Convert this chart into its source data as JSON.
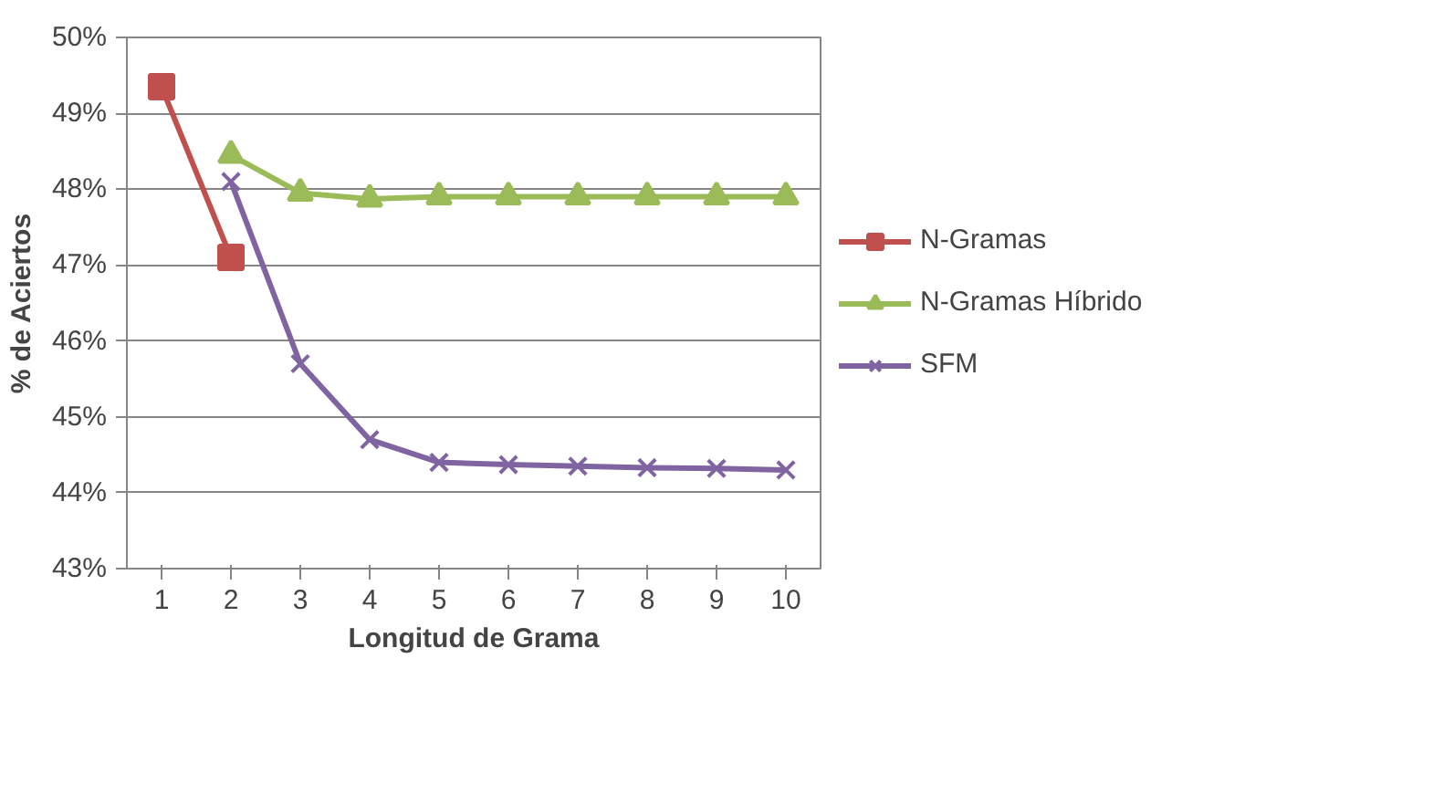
{
  "chart_data": {
    "type": "line",
    "xlabel": "Longitud de Grama",
    "ylabel": "% de Aciertos",
    "categories": [
      "1",
      "2",
      "3",
      "4",
      "5",
      "6",
      "7",
      "8",
      "9",
      "10"
    ],
    "series": [
      {
        "name": "N-Gramas",
        "color": "#c0504d",
        "marker": "square",
        "values": [
          49.35,
          47.1,
          null,
          null,
          null,
          null,
          null,
          null,
          null,
          null
        ]
      },
      {
        "name": "N-Gramas Híbrido",
        "color": "#9bbb59",
        "marker": "triangle",
        "values": [
          null,
          48.45,
          47.95,
          47.87,
          47.9,
          47.9,
          47.9,
          47.9,
          47.9,
          47.9
        ]
      },
      {
        "name": "SFM",
        "color": "#8064a2",
        "marker": "cross",
        "values": [
          null,
          48.1,
          45.7,
          44.7,
          44.4,
          44.37,
          44.35,
          44.33,
          44.32,
          44.3
        ]
      }
    ],
    "ylim": [
      43,
      50
    ],
    "yticks": [
      {
        "value": 43,
        "label": "43%"
      },
      {
        "value": 44,
        "label": "44%"
      },
      {
        "value": 45,
        "label": "45%"
      },
      {
        "value": 46,
        "label": "46%"
      },
      {
        "value": 47,
        "label": "47%"
      },
      {
        "value": 48,
        "label": "48%"
      },
      {
        "value": 49,
        "label": "49%"
      },
      {
        "value": 50,
        "label": "50%"
      }
    ],
    "grid": "y",
    "legend": "right",
    "line_style": "solid"
  }
}
